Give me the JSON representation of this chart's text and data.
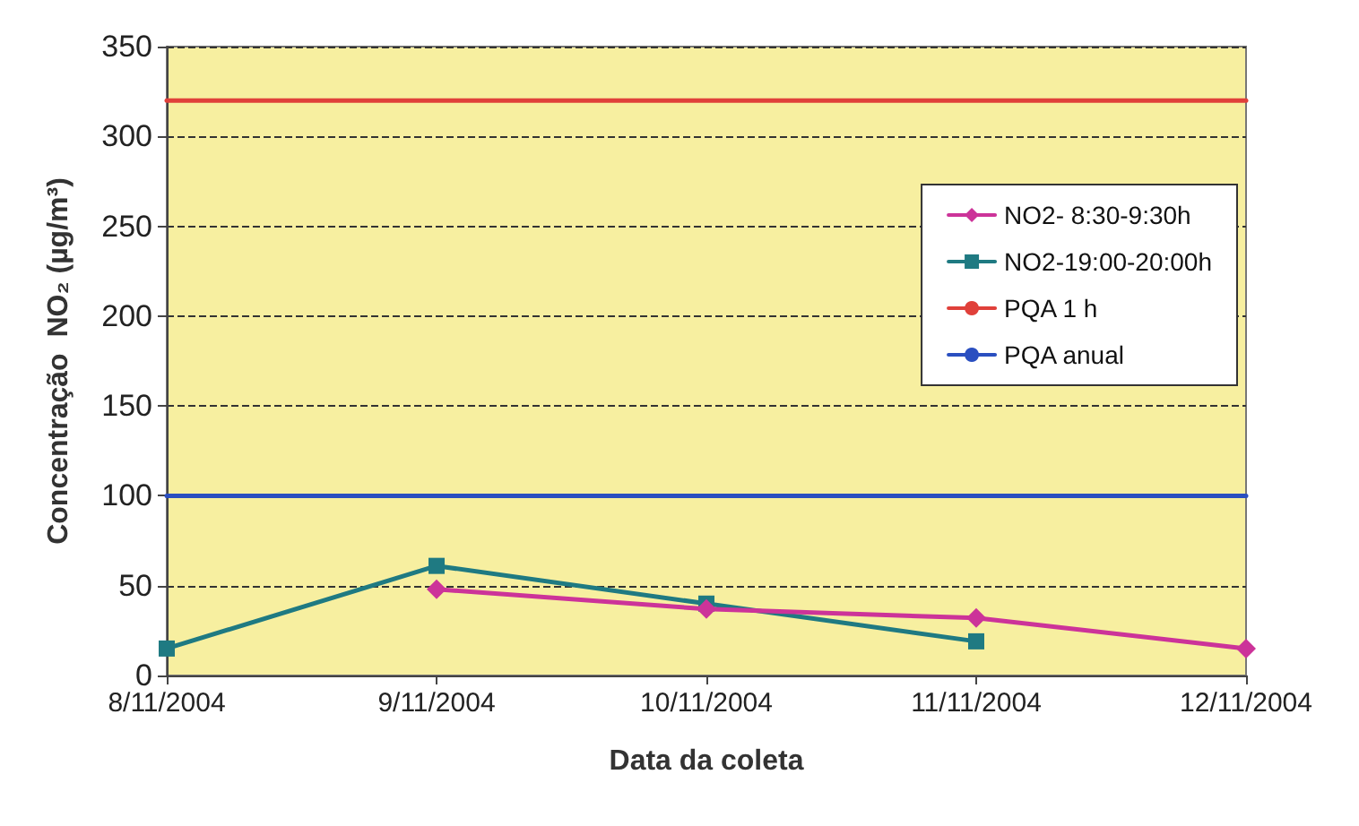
{
  "chart_data": {
    "type": "line",
    "xlabel": "Data da coleta",
    "ylabel": "Concentração  NO₂ (µg/m³)",
    "categories": [
      "8/11/2004",
      "9/11/2004",
      "10/11/2004",
      "11/11/2004",
      "12/11/2004"
    ],
    "series": [
      {
        "name": "NO2- 8:30-9:30h",
        "color": "#cc3399",
        "marker": "diamond",
        "values": [
          null,
          48,
          37,
          32,
          15
        ]
      },
      {
        "name": "NO2-19:00-20:00h",
        "color": "#1f7a82",
        "marker": "square",
        "values": [
          15,
          61,
          40,
          19,
          null
        ]
      },
      {
        "name": "PQA 1 h",
        "color": "#e0403a",
        "marker": "none",
        "values": [
          320,
          320,
          320,
          320,
          320
        ]
      },
      {
        "name": "PQA anual",
        "color": "#2a4fc0",
        "marker": "none",
        "values": [
          100,
          100,
          100,
          100,
          100
        ]
      }
    ],
    "ylim": [
      0,
      350
    ],
    "yticks": [
      0,
      50,
      100,
      150,
      200,
      250,
      300,
      350
    ],
    "grid": "y",
    "legend": "right"
  }
}
